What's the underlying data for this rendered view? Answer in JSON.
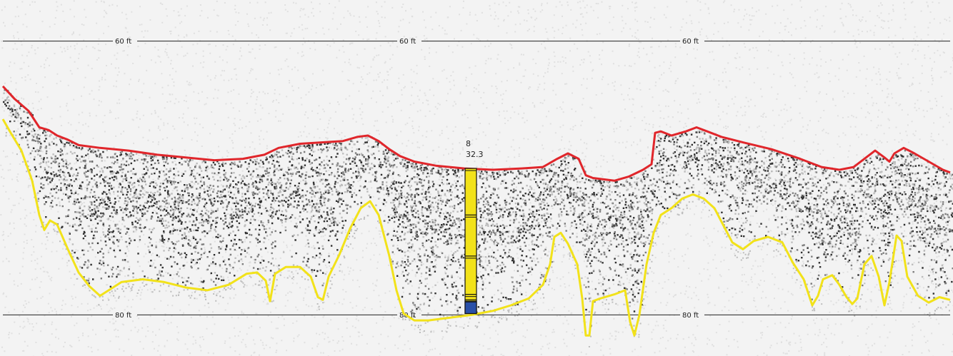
{
  "chart_data": {
    "type": "echogram",
    "depth_gridlines": [
      {
        "label": "60 ft",
        "depth_ft": 60
      },
      {
        "label": "80 ft",
        "depth_ft": 80
      }
    ],
    "ylim_ft": [
      57,
      83
    ],
    "xlim": [
      0,
      1334
    ],
    "colors": {
      "background": "#f3f3f3",
      "surface_line": "#e0262b",
      "bottom_line": "#f2e21a",
      "core": "#f2e21a",
      "core_bottom": "#2a50a8",
      "echo": "#1a1a1a"
    },
    "surface_line": [
      [
        4,
        63.3
      ],
      [
        20,
        64.2
      ],
      [
        40,
        65.1
      ],
      [
        55,
        66.3
      ],
      [
        68,
        66.5
      ],
      [
        80,
        66.9
      ],
      [
        95,
        67.2
      ],
      [
        110,
        67.6
      ],
      [
        140,
        67.8
      ],
      [
        180,
        68.0
      ],
      [
        220,
        68.3
      ],
      [
        260,
        68.5
      ],
      [
        300,
        68.7
      ],
      [
        340,
        68.6
      ],
      [
        370,
        68.3
      ],
      [
        390,
        67.8
      ],
      [
        420,
        67.5
      ],
      [
        450,
        67.4
      ],
      [
        480,
        67.3
      ],
      [
        500,
        67.0
      ],
      [
        515,
        66.9
      ],
      [
        530,
        67.3
      ],
      [
        545,
        67.9
      ],
      [
        560,
        68.4
      ],
      [
        580,
        68.8
      ],
      [
        610,
        69.1
      ],
      [
        650,
        69.3
      ],
      [
        690,
        69.4
      ],
      [
        730,
        69.3
      ],
      [
        760,
        69.2
      ],
      [
        780,
        68.6
      ],
      [
        795,
        68.2
      ],
      [
        810,
        68.6
      ],
      [
        820,
        69.8
      ],
      [
        830,
        70.0
      ],
      [
        860,
        70.2
      ],
      [
        880,
        69.9
      ],
      [
        900,
        69.4
      ],
      [
        912,
        69.0
      ],
      [
        917,
        66.7
      ],
      [
        925,
        66.6
      ],
      [
        940,
        66.9
      ],
      [
        960,
        66.6
      ],
      [
        975,
        66.3
      ],
      [
        990,
        66.6
      ],
      [
        1010,
        67.0
      ],
      [
        1040,
        67.4
      ],
      [
        1080,
        67.9
      ],
      [
        1120,
        68.6
      ],
      [
        1150,
        69.2
      ],
      [
        1175,
        69.4
      ],
      [
        1195,
        69.2
      ],
      [
        1210,
        68.6
      ],
      [
        1225,
        68.0
      ],
      [
        1238,
        68.5
      ],
      [
        1245,
        68.8
      ],
      [
        1252,
        68.2
      ],
      [
        1265,
        67.8
      ],
      [
        1280,
        68.2
      ],
      [
        1300,
        68.8
      ],
      [
        1320,
        69.4
      ],
      [
        1330,
        69.6
      ]
    ],
    "bottom_line": [
      [
        4,
        65.7
      ],
      [
        15,
        66.7
      ],
      [
        30,
        68.0
      ],
      [
        45,
        70.2
      ],
      [
        55,
        72.7
      ],
      [
        62,
        73.8
      ],
      [
        70,
        73.1
      ],
      [
        80,
        73.4
      ],
      [
        95,
        75.2
      ],
      [
        110,
        76.9
      ],
      [
        125,
        77.9
      ],
      [
        140,
        78.6
      ],
      [
        155,
        78.1
      ],
      [
        170,
        77.6
      ],
      [
        200,
        77.4
      ],
      [
        230,
        77.6
      ],
      [
        260,
        78.0
      ],
      [
        290,
        78.2
      ],
      [
        320,
        77.8
      ],
      [
        345,
        77.0
      ],
      [
        360,
        76.9
      ],
      [
        372,
        77.5
      ],
      [
        378,
        79.0
      ],
      [
        385,
        77.0
      ],
      [
        400,
        76.5
      ],
      [
        420,
        76.5
      ],
      [
        435,
        77.2
      ],
      [
        445,
        78.7
      ],
      [
        452,
        78.9
      ],
      [
        460,
        77.2
      ],
      [
        475,
        75.6
      ],
      [
        490,
        73.7
      ],
      [
        505,
        72.2
      ],
      [
        518,
        71.7
      ],
      [
        530,
        72.7
      ],
      [
        545,
        75.7
      ],
      [
        555,
        78.2
      ],
      [
        565,
        79.9
      ],
      [
        580,
        80.4
      ],
      [
        600,
        80.4
      ],
      [
        630,
        80.2
      ],
      [
        660,
        80.0
      ],
      [
        690,
        79.7
      ],
      [
        715,
        79.3
      ],
      [
        740,
        78.8
      ],
      [
        760,
        77.8
      ],
      [
        770,
        76.3
      ],
      [
        776,
        74.3
      ],
      [
        785,
        74.0
      ],
      [
        795,
        74.8
      ],
      [
        808,
        76.3
      ],
      [
        815,
        78.8
      ],
      [
        820,
        81.5
      ],
      [
        825,
        81.5
      ],
      [
        830,
        79.0
      ],
      [
        840,
        78.8
      ],
      [
        860,
        78.5
      ],
      [
        875,
        78.2
      ],
      [
        882,
        80.5
      ],
      [
        888,
        81.5
      ],
      [
        895,
        80.0
      ],
      [
        905,
        76.3
      ],
      [
        915,
        74.0
      ],
      [
        925,
        72.7
      ],
      [
        940,
        72.2
      ],
      [
        955,
        71.5
      ],
      [
        970,
        71.2
      ],
      [
        985,
        71.5
      ],
      [
        1000,
        72.2
      ],
      [
        1015,
        73.7
      ],
      [
        1025,
        74.7
      ],
      [
        1040,
        75.2
      ],
      [
        1055,
        74.6
      ],
      [
        1075,
        74.3
      ],
      [
        1095,
        74.7
      ],
      [
        1110,
        76.2
      ],
      [
        1125,
        77.4
      ],
      [
        1137,
        79.3
      ],
      [
        1145,
        78.6
      ],
      [
        1152,
        77.4
      ],
      [
        1165,
        77.1
      ],
      [
        1175,
        77.8
      ],
      [
        1185,
        78.7
      ],
      [
        1193,
        79.2
      ],
      [
        1200,
        78.8
      ],
      [
        1210,
        76.3
      ],
      [
        1220,
        75.7
      ],
      [
        1230,
        77.2
      ],
      [
        1238,
        79.3
      ],
      [
        1245,
        77.6
      ],
      [
        1255,
        74.2
      ],
      [
        1262,
        74.6
      ],
      [
        1270,
        77.2
      ],
      [
        1285,
        78.6
      ],
      [
        1300,
        79.1
      ],
      [
        1315,
        78.7
      ],
      [
        1330,
        78.9
      ]
    ],
    "core": {
      "label_top": "8",
      "label_value": "32.3",
      "x": 659,
      "top_ft": 69.3,
      "bottom_ft": 79.9,
      "boundaries_ft": [
        72.7,
        75.7,
        78.5,
        78.9
      ],
      "bottom_segment_ft": [
        79.0,
        79.9
      ]
    }
  }
}
